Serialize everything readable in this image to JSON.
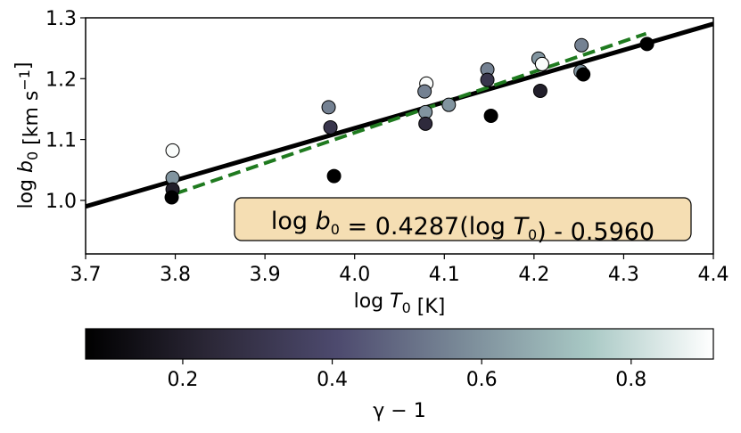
{
  "chart_data": {
    "type": "scatter",
    "x_label": [
      "log ",
      "T",
      "0",
      " [K]"
    ],
    "y_label": [
      "log ",
      "b",
      "0",
      " [km s",
      "−1",
      "]"
    ],
    "annotation": [
      "log ",
      "b",
      "0",
      " = 0.4287(log ",
      "T",
      "0",
      ") - 0.5960"
    ],
    "xlim": [
      3.7,
      4.4
    ],
    "xticks": [
      3.7,
      3.8,
      3.9,
      {
        "value": 4,
        "label": "4.0"
      },
      4.1,
      4.2,
      4.3,
      4.4
    ],
    "ylim": [
      0.912,
      1.3
    ],
    "yticks": [
      {
        "value": 1,
        "label": "1.0"
      },
      1.1,
      1.2,
      1.3
    ],
    "series": [
      {
        "x": [
          3.797,
          3.797,
          3.797,
          3.796,
          3.971,
          3.973,
          3.977,
          4.08,
          4.078,
          4.079,
          4.079,
          4.105,
          4.148,
          4.148,
          4.152,
          4.205,
          4.209,
          4.207,
          4.253,
          4.252,
          4.255,
          4.326
        ],
        "y": [
          1.082,
          1.037,
          1.018,
          1.005,
          1.153,
          1.12,
          1.04,
          1.192,
          1.179,
          1.145,
          1.126,
          1.157,
          1.215,
          1.198,
          1.139,
          1.233,
          1.224,
          1.18,
          1.255,
          1.212,
          1.207,
          1.257
        ],
        "c": [
          0.9,
          0.6,
          0.2,
          0.07,
          0.55,
          0.3,
          0.07,
          0.9,
          0.55,
          0.6,
          0.25,
          0.6,
          0.55,
          0.3,
          0.07,
          0.6,
          0.9,
          0.2,
          0.55,
          0.6,
          0.07,
          0.07
        ]
      }
    ],
    "lines": [
      {
        "color": "#000000",
        "dash": false,
        "x": [
          3.7,
          4.4
        ],
        "y": [
          0.99,
          1.29
        ]
      },
      {
        "color": "#1f7a1f",
        "dash": true,
        "x": [
          3.8,
          4.325
        ],
        "y": [
          1.011,
          1.274
        ]
      }
    ],
    "colorbar": {
      "label": "γ − 1",
      "clim": [
        0.07,
        0.91
      ],
      "ticks": [
        0.2,
        0.4,
        0.6,
        0.8
      ],
      "colormap": [
        "#000000",
        "#2c2838",
        "#4d4a6e",
        "#7a8a98",
        "#a8c8c4",
        "#ffffff"
      ]
    }
  }
}
